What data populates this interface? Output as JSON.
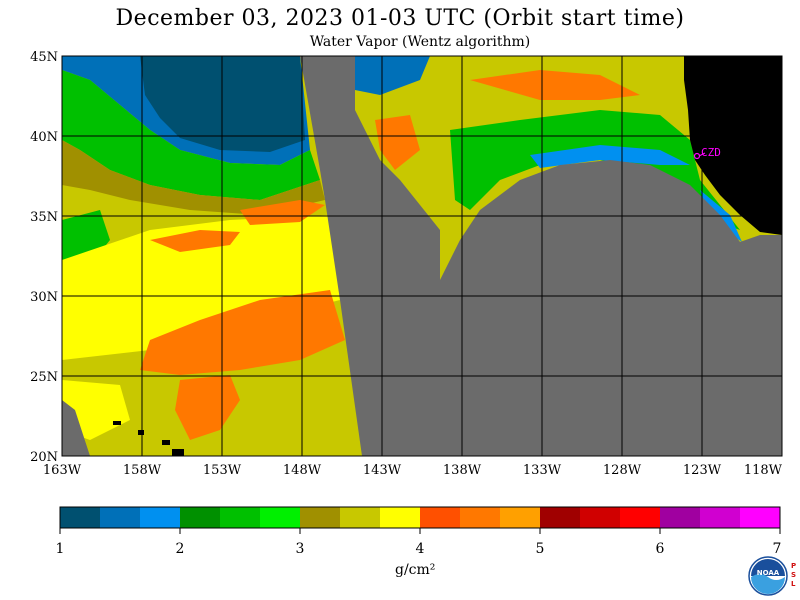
{
  "header": {
    "title": "December 03, 2023  01-03 UTC  (Orbit start time)",
    "subtitle": "Water Vapor (Wentz algorithm)"
  },
  "map": {
    "lat_labels": [
      "45N",
      "40N",
      "35N",
      "30N",
      "25N",
      "20N"
    ],
    "lon_labels": [
      "163W",
      "158W",
      "153W",
      "148W",
      "143W",
      "138W",
      "133W",
      "128W",
      "123W",
      "118W"
    ],
    "station_label": "CZD",
    "colors": {
      "no_data": "#6b6b6b",
      "land": "#000000",
      "station": "#ff00ff",
      "grid": "#000000"
    }
  },
  "colorbar": {
    "tick_labels": [
      "1",
      "2",
      "3",
      "4",
      "5",
      "6",
      "7"
    ],
    "unit_label": "g/cm²",
    "colors": [
      "#005070",
      "#0070b8",
      "#0090f0",
      "#009000",
      "#00c000",
      "#00f000",
      "#a09000",
      "#c8c800",
      "#ffff00",
      "#ff5000",
      "#ff7800",
      "#ffa000",
      "#a00000",
      "#d00000",
      "#ff0000",
      "#a000a0",
      "#d000d0",
      "#ff00ff"
    ]
  },
  "logo": {
    "noaa_text": "NOAA",
    "psl_text": "PSL"
  }
}
